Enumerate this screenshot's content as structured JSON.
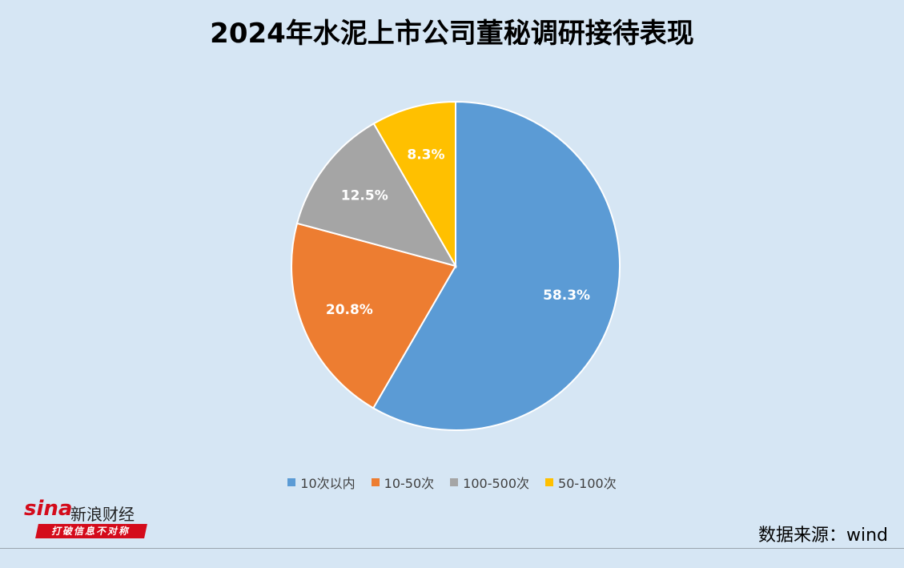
{
  "chart_data": {
    "type": "pie",
    "title": "2024年水泥上市公司董秘调研接待表现",
    "categories": [
      "10次以内",
      "10-50次",
      "100-500次",
      "50-100次"
    ],
    "values": [
      58.3,
      20.8,
      12.5,
      8.3
    ],
    "data_labels": [
      "58.3%",
      "20.8%",
      "12.5%",
      "8.3%"
    ],
    "colors": [
      "#5b9bd5",
      "#ed7d31",
      "#a5a5a5",
      "#ffc000"
    ],
    "legend_position": "bottom"
  },
  "watermark": {
    "brand": "sina",
    "name": "新浪财经",
    "slogan": "打破信息不对称"
  },
  "source": "数据来源：wind"
}
